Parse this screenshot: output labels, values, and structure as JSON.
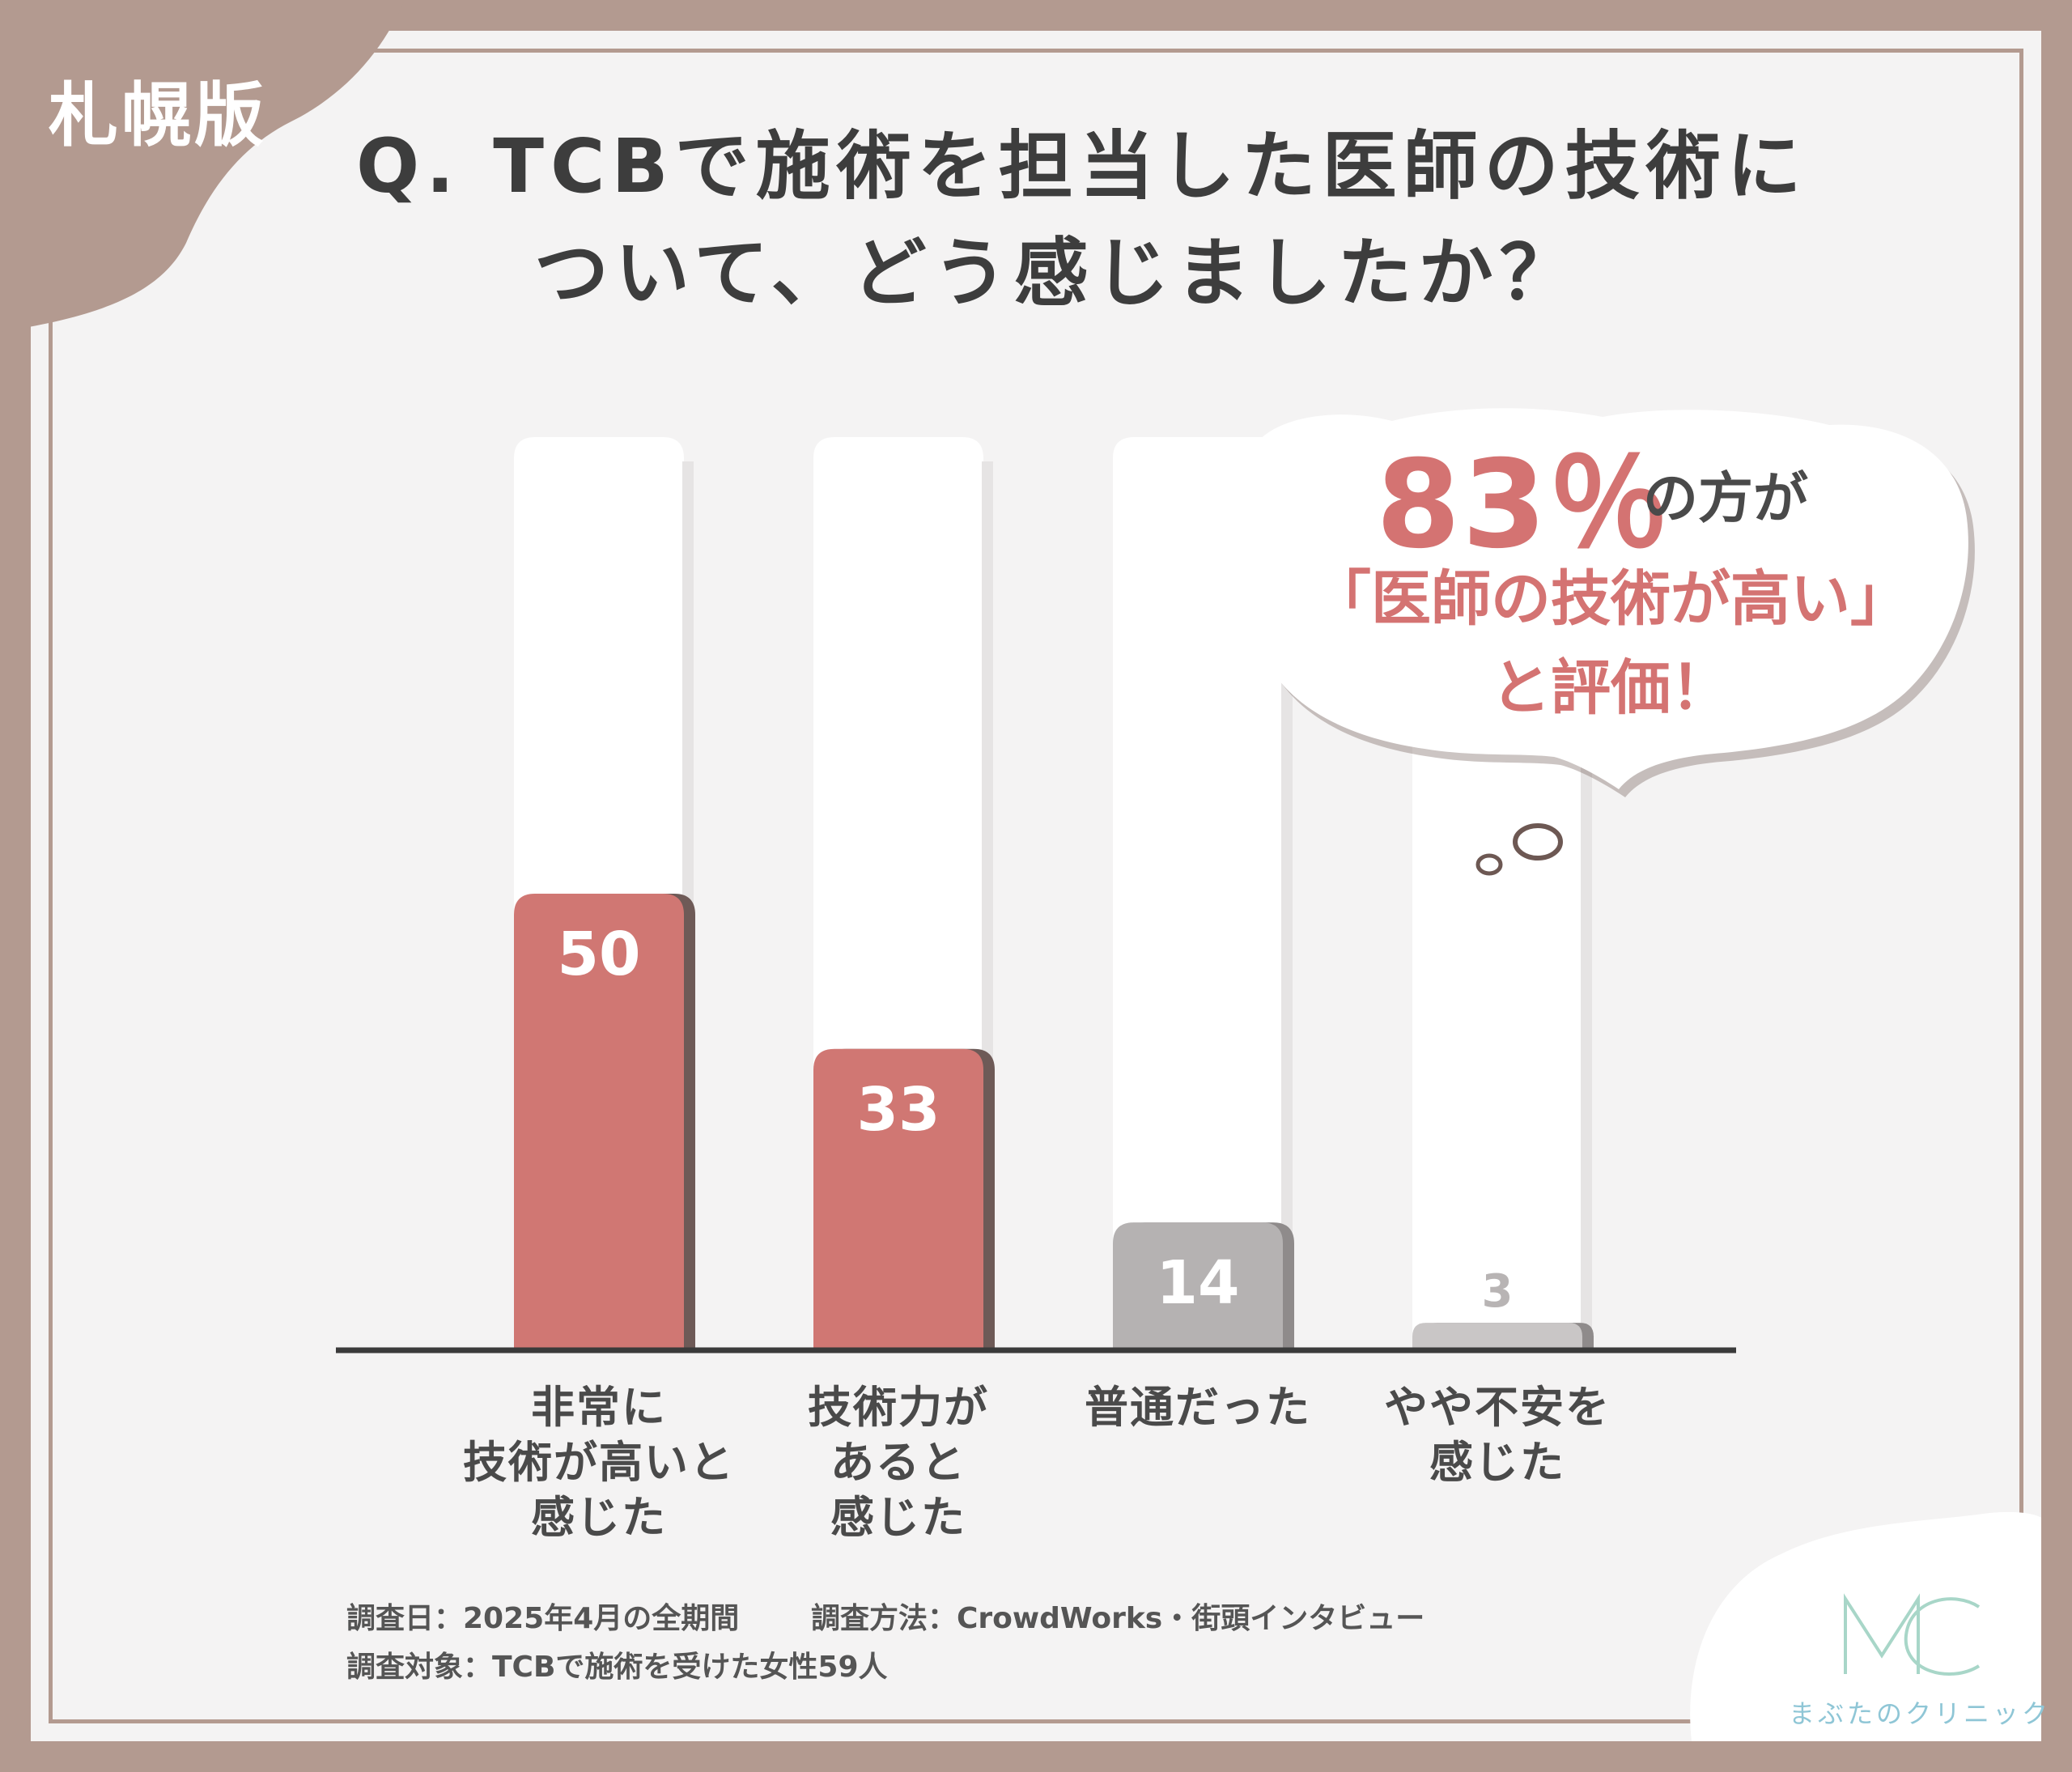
{
  "badge": {
    "region": "札幌版"
  },
  "title": {
    "line1": "Q. TCBで施術を担当した医師の技術に",
    "line2": "ついて、どう感じましたか？"
  },
  "callout": {
    "percent": "83％",
    "suffix": "の方が",
    "line2": "「医師の技術が高い」",
    "line3": "と評価！"
  },
  "chart_data": {
    "type": "bar",
    "categories": [
      "非常に技術が高いと感じた",
      "技術力があると感じた",
      "普通だった",
      "やや不安を感じた"
    ],
    "category_lines": [
      [
        "非常に",
        "技術が高いと",
        "感じた"
      ],
      [
        "技術力が",
        "あると",
        "感じた"
      ],
      [
        "普通だった"
      ],
      [
        "やや不安を",
        "感じた"
      ]
    ],
    "values": [
      50,
      33,
      14,
      3
    ],
    "value_unit": "%",
    "ylim": [
      0,
      100
    ],
    "colors": [
      "#d07773",
      "#d07773",
      "#b5b2b2",
      "#c9c6c6"
    ],
    "grid": false,
    "legend": "none"
  },
  "notes": {
    "date": "調査日：2025年4月の全期間",
    "method": "調査方法：CrowdWorks・街頭インタビュー",
    "target": "調査対象：TCBで施術を受けた女性59人"
  },
  "logo": {
    "mark": "MC",
    "name": "まぶたのクリニック"
  }
}
